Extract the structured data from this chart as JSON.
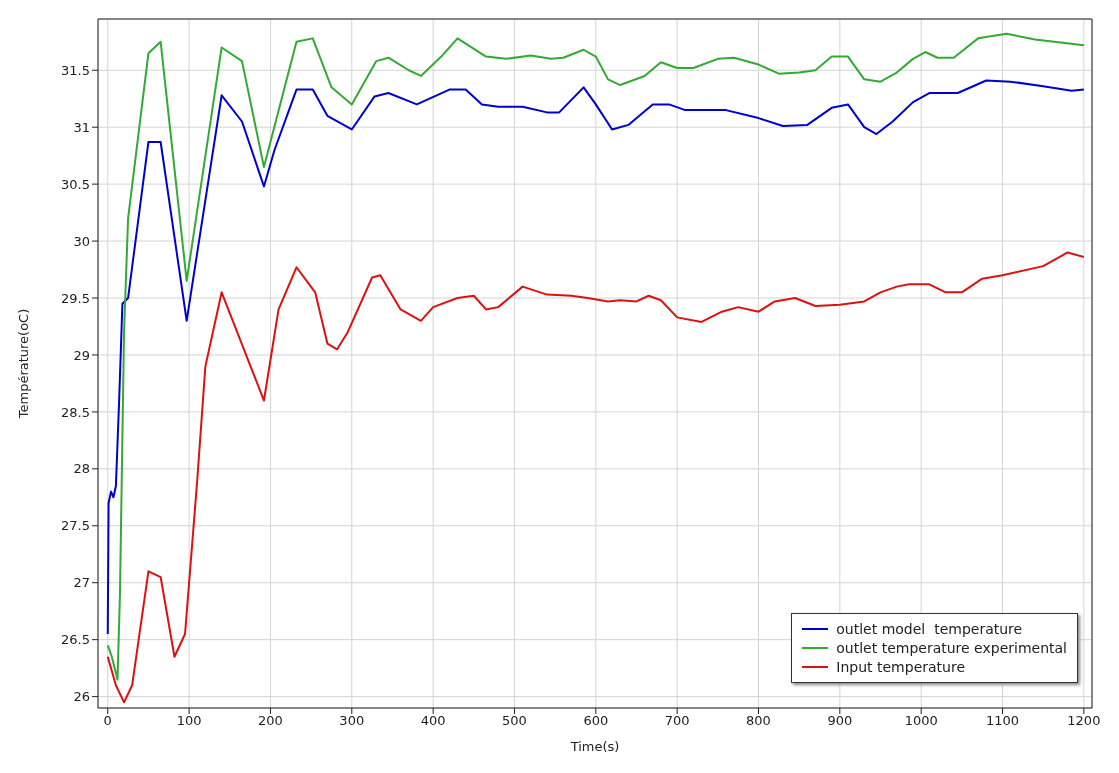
{
  "chart_data": {
    "type": "line",
    "xlabel": "Time(s)",
    "ylabel": "Température(oC)",
    "xlim": [
      -12,
      1210
    ],
    "ylim": [
      25.9,
      31.95
    ],
    "xticks": [
      0,
      100,
      200,
      300,
      400,
      500,
      600,
      700,
      800,
      900,
      1000,
      1100,
      1200
    ],
    "yticks": [
      26,
      26.5,
      27,
      27.5,
      28,
      28.5,
      29,
      29.5,
      30,
      30.5,
      31,
      31.5
    ],
    "grid": true,
    "legend": "bottom right",
    "marker": "none",
    "line_style": "solid",
    "series": [
      {
        "name": "outlet model  temperature",
        "color": "#0000cc",
        "x": [
          0,
          1,
          4,
          7,
          10,
          14,
          18,
          25,
          50,
          65,
          97,
          140,
          165,
          192,
          205,
          232,
          252,
          270,
          300,
          328,
          345,
          380,
          420,
          440,
          460,
          480,
          510,
          540,
          555,
          585,
          600,
          620,
          640,
          670,
          690,
          710,
          760,
          800,
          830,
          860,
          890,
          910,
          930,
          945,
          965,
          990,
          1010,
          1045,
          1080,
          1110,
          1150,
          1185,
          1200
        ],
        "values": [
          26.55,
          27.7,
          27.8,
          27.75,
          27.85,
          28.6,
          29.45,
          29.5,
          30.87,
          30.87,
          29.3,
          31.28,
          31.05,
          30.48,
          30.8,
          31.33,
          31.33,
          31.1,
          30.98,
          31.27,
          31.3,
          31.2,
          31.33,
          31.33,
          31.2,
          31.18,
          31.18,
          31.13,
          31.13,
          31.35,
          31.2,
          30.98,
          31.02,
          31.2,
          31.2,
          31.15,
          31.15,
          31.08,
          31.01,
          31.02,
          31.17,
          31.2,
          31.0,
          30.94,
          31.05,
          31.22,
          31.3,
          31.3,
          31.41,
          31.4,
          31.36,
          31.32,
          31.33
        ]
      },
      {
        "name": "outlet temperature experimental",
        "color": "#33aa33",
        "x": [
          0,
          5,
          12,
          15,
          20,
          25,
          50,
          65,
          97,
          140,
          165,
          192,
          232,
          252,
          275,
          300,
          330,
          345,
          370,
          385,
          410,
          430,
          465,
          490,
          520,
          545,
          560,
          585,
          600,
          615,
          630,
          660,
          680,
          700,
          720,
          750,
          770,
          800,
          825,
          850,
          870,
          890,
          910,
          930,
          950,
          970,
          990,
          1005,
          1020,
          1040,
          1070,
          1105,
          1140,
          1200
        ],
        "values": [
          26.45,
          26.35,
          26.15,
          26.9,
          29.2,
          30.2,
          31.65,
          31.75,
          29.65,
          31.7,
          31.58,
          30.65,
          31.75,
          31.78,
          31.35,
          31.2,
          31.58,
          31.61,
          31.5,
          31.45,
          31.62,
          31.78,
          31.62,
          31.6,
          31.63,
          31.6,
          31.61,
          31.68,
          31.62,
          31.42,
          31.37,
          31.45,
          31.57,
          31.52,
          31.52,
          31.6,
          31.61,
          31.55,
          31.47,
          31.48,
          31.5,
          31.62,
          31.62,
          31.42,
          31.4,
          31.48,
          31.6,
          31.66,
          31.61,
          31.61,
          31.78,
          31.82,
          31.77,
          31.72
        ]
      },
      {
        "name": "Input temperature",
        "color": "#dd1111",
        "x": [
          0,
          10,
          20,
          30,
          50,
          65,
          82,
          95,
          110,
          120,
          140,
          192,
          210,
          232,
          255,
          270,
          282,
          295,
          325,
          335,
          360,
          385,
          400,
          430,
          450,
          465,
          480,
          510,
          540,
          570,
          590,
          615,
          630,
          650,
          665,
          680,
          700,
          730,
          755,
          775,
          800,
          820,
          845,
          870,
          900,
          930,
          950,
          970,
          985,
          1010,
          1030,
          1050,
          1075,
          1100,
          1150,
          1180,
          1200
        ],
        "values": [
          26.35,
          26.1,
          25.95,
          26.1,
          27.1,
          27.05,
          26.35,
          26.55,
          27.9,
          28.9,
          29.55,
          28.6,
          29.4,
          29.77,
          29.55,
          29.1,
          29.05,
          29.2,
          29.68,
          29.7,
          29.4,
          29.3,
          29.42,
          29.5,
          29.52,
          29.4,
          29.42,
          29.6,
          29.53,
          29.52,
          29.5,
          29.47,
          29.48,
          29.47,
          29.52,
          29.48,
          29.33,
          29.29,
          29.38,
          29.42,
          29.38,
          29.47,
          29.5,
          29.43,
          29.44,
          29.47,
          29.55,
          29.6,
          29.62,
          29.62,
          29.55,
          29.55,
          29.67,
          29.7,
          29.78,
          29.9,
          29.86
        ]
      }
    ]
  }
}
